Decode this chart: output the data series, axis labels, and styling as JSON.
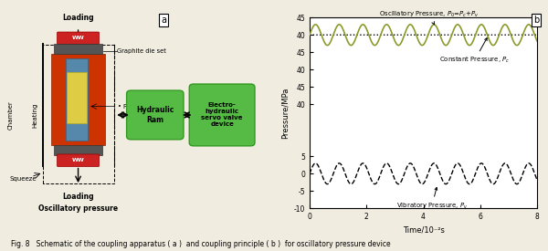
{
  "fig_width": 6.0,
  "fig_height": 2.75,
  "dpi": 100,
  "background_color": "#f0ece0",
  "caption": "Fig. 8   Schematic of the coupling apparatus ( a )  and coupling principle ( b )  for oscillatory pressure device",
  "panel_a_label": "a",
  "panel_b_label": "b",
  "plot_xlim": [
    0,
    8
  ],
  "plot_ylim": [
    -10,
    45
  ],
  "xlabel": "Time/10⁻²s",
  "ylabel": "Pressure/MPa",
  "Pc": 40,
  "Pv_amplitude": 3.0,
  "Pv_freq": 1.2,
  "osc_color": "#8b9a2a",
  "const_color": "#000000",
  "vibr_color": "#000000",
  "ytick_positions": [
    45,
    40,
    35,
    30,
    25,
    20,
    5,
    0,
    -5,
    -10
  ],
  "ytick_labels": [
    "45",
    "40",
    "45",
    "40",
    "45",
    "40",
    "5",
    "0",
    "-5",
    "-10"
  ],
  "xtick_positions": [
    0,
    2,
    4,
    6,
    8
  ],
  "xtick_labels": [
    "0",
    "2",
    "4",
    "6",
    "8"
  ]
}
